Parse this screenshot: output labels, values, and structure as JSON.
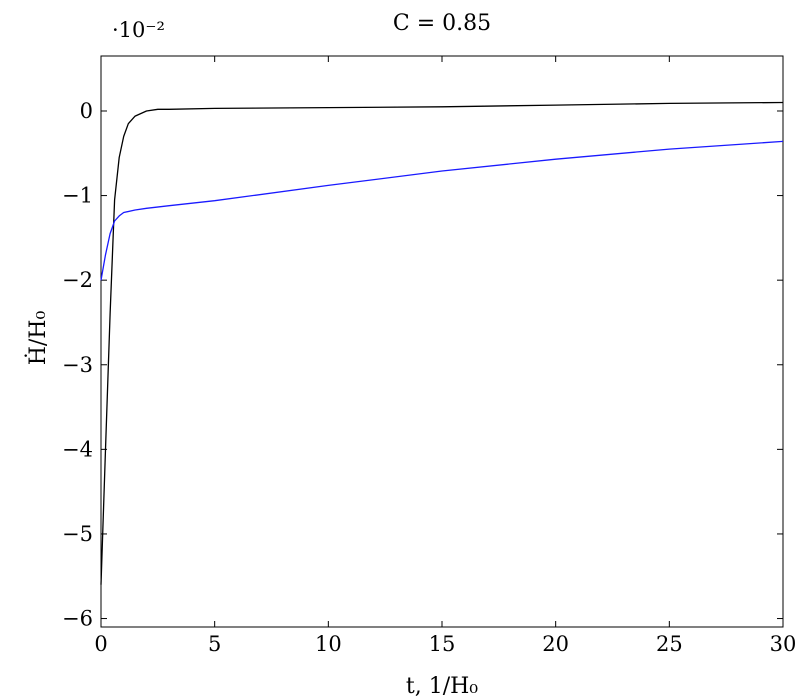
{
  "chart_data": {
    "type": "line",
    "title": "C = 0.85",
    "xlabel": "t, 1/H₀",
    "ylabel": "Ḣ/H₀",
    "y_multiplier": "·10⁻²",
    "xlim": [
      0,
      30
    ],
    "ylim": [
      -6.1,
      0.65
    ],
    "xticks": [
      0,
      5,
      10,
      15,
      20,
      25,
      30
    ],
    "yticks": [
      -6,
      -5,
      -4,
      -3,
      -2,
      -1,
      0
    ],
    "grid": false,
    "series": [
      {
        "color": "#000000",
        "x": [
          0,
          0.2,
          0.4,
          0.6,
          0.8,
          1.0,
          1.2,
          1.5,
          2.0,
          2.5,
          3.0,
          5,
          10,
          15,
          20,
          25,
          30
        ],
        "y": [
          -5.6,
          -4.0,
          -2.4,
          -1.05,
          -0.55,
          -0.3,
          -0.15,
          -0.06,
          0.0,
          0.02,
          0.02,
          0.03,
          0.04,
          0.05,
          0.07,
          0.09,
          0.1
        ]
      },
      {
        "color": "#1a1aff",
        "x": [
          0,
          0.2,
          0.4,
          0.6,
          0.8,
          1.0,
          1.5,
          2.0,
          3.0,
          5,
          10,
          15,
          20,
          25,
          30
        ],
        "y": [
          -2.0,
          -1.7,
          -1.45,
          -1.3,
          -1.24,
          -1.2,
          -1.17,
          -1.15,
          -1.12,
          -1.06,
          -0.88,
          -0.71,
          -0.57,
          -0.45,
          -0.36
        ]
      }
    ]
  }
}
